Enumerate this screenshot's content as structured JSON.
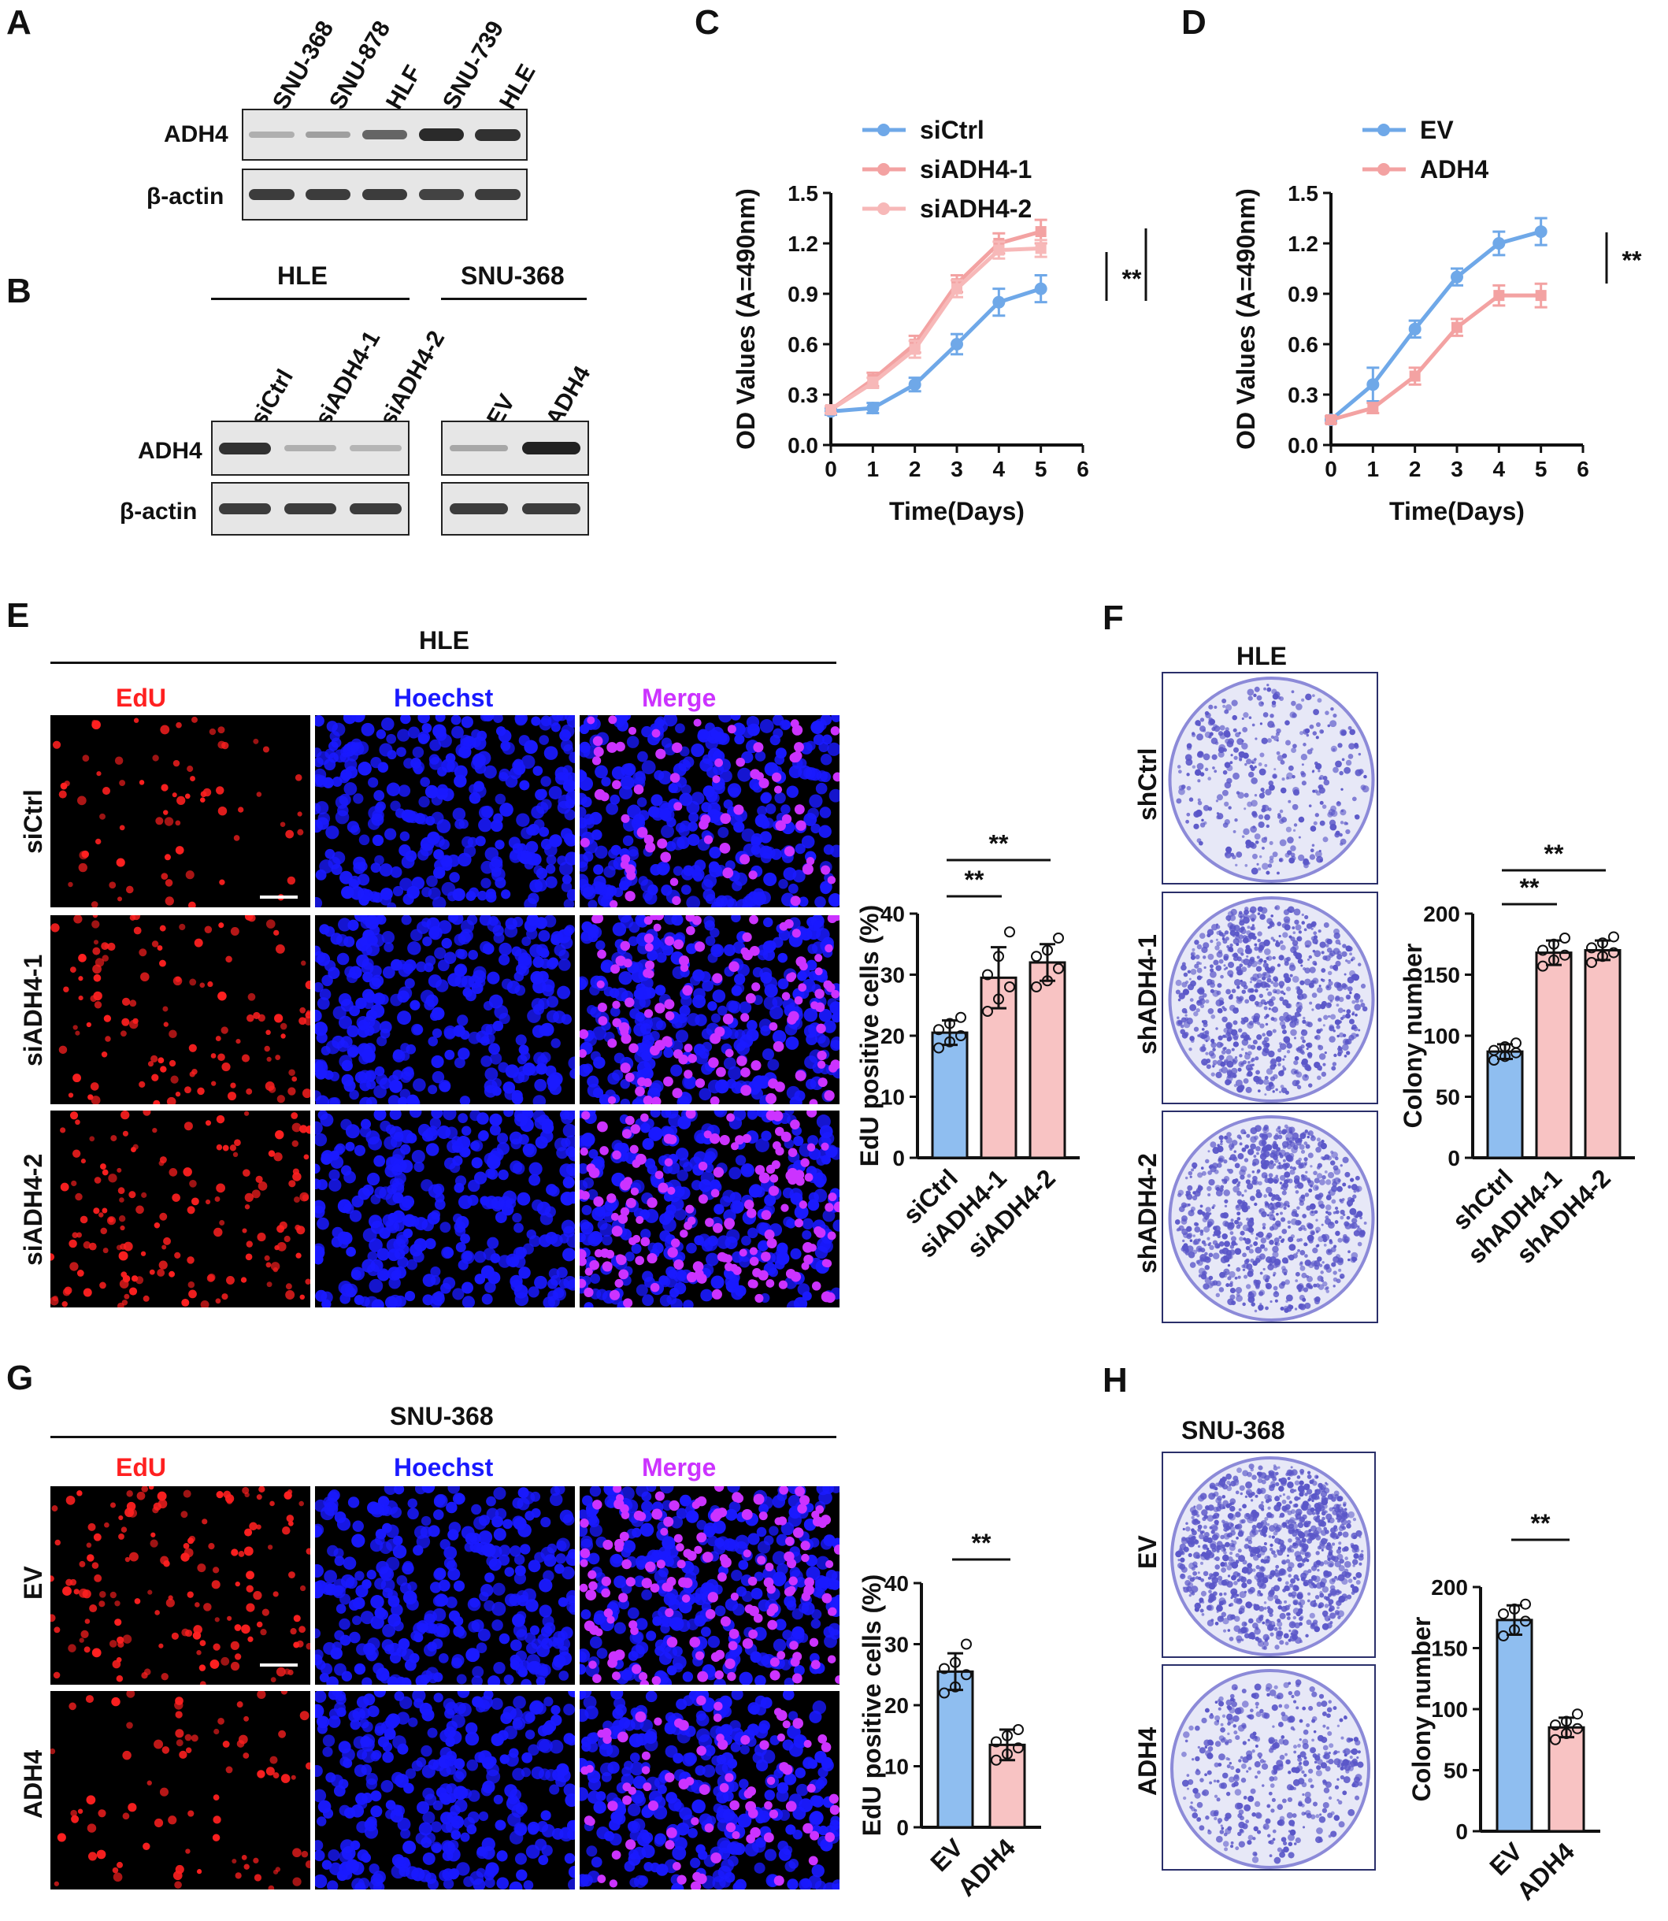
{
  "panels": {
    "A": {
      "letter": "A",
      "lanes": [
        "SNU-368",
        "SNU-878",
        "HLF",
        "SNU-739",
        "HLE"
      ],
      "rows": [
        "ADH4",
        "β-actin"
      ],
      "adh4_intensity": [
        0.15,
        0.25,
        0.6,
        0.95,
        0.9
      ]
    },
    "B": {
      "letter": "B",
      "group1": "HLE",
      "group2": "SNU-368",
      "lanes1": [
        "siCtrl",
        "siADH4-1",
        "siADH4-2"
      ],
      "lanes2": [
        "EV",
        "ADH4"
      ],
      "rows": [
        "ADH4",
        "β-actin"
      ]
    },
    "C": {
      "letter": "C"
    },
    "D": {
      "letter": "D"
    },
    "E": {
      "letter": "E",
      "cell_line": "HLE",
      "channels": [
        "EdU",
        "Hoechst",
        "Merge"
      ],
      "rows": [
        "siCtrl",
        "siADH4-1",
        "siADH4-2"
      ]
    },
    "F": {
      "letter": "F",
      "cell_line": "HLE",
      "rows": [
        "shCtrl",
        "shADH4-1",
        "shADH4-2"
      ]
    },
    "G": {
      "letter": "G",
      "cell_line": "SNU-368",
      "channels": [
        "EdU",
        "Hoechst",
        "Merge"
      ],
      "rows": [
        "EV",
        "ADH4"
      ]
    },
    "H": {
      "letter": "H",
      "cell_line": "SNU-368",
      "rows": [
        "EV",
        "ADH4"
      ]
    }
  },
  "colors": {
    "blue": "#6fa8e8",
    "pink": "#f3a2a2",
    "bar_blue": "#8fbef0",
    "bar_pink": "#f8c3c3",
    "edu": "#ff2020",
    "hoechst": "#1a1aff",
    "merge": "#cc33ff",
    "plate": "#5a56c8"
  },
  "chart_data": [
    {
      "id": "C",
      "type": "line",
      "xlabel": "Time(Days)",
      "ylabel": "OD Values (A=490nm)",
      "xlim": [
        0,
        6
      ],
      "ylim": [
        0,
        1.5
      ],
      "xticks": [
        "0",
        "1",
        "2",
        "3",
        "4",
        "5",
        "6"
      ],
      "yticks": [
        "0.0",
        "0.3",
        "0.6",
        "0.9",
        "1.2",
        "1.5"
      ],
      "x": [
        0,
        1,
        2,
        3,
        4,
        5
      ],
      "series": [
        {
          "name": "siCtrl",
          "color": "#6fa8e8",
          "values": [
            0.2,
            0.22,
            0.36,
            0.6,
            0.85,
            0.93
          ],
          "err": [
            0.02,
            0.03,
            0.04,
            0.06,
            0.08,
            0.08
          ]
        },
        {
          "name": "siADH4-1",
          "color": "#f3a2a2",
          "values": [
            0.21,
            0.39,
            0.6,
            0.96,
            1.2,
            1.27
          ],
          "err": [
            0.02,
            0.04,
            0.05,
            0.05,
            0.06,
            0.07
          ]
        },
        {
          "name": "siADH4-2",
          "color": "#f7b8b8",
          "values": [
            0.21,
            0.37,
            0.57,
            0.93,
            1.16,
            1.17
          ],
          "err": [
            0.02,
            0.03,
            0.05,
            0.05,
            0.05,
            0.05
          ]
        }
      ],
      "significance": [
        "**",
        "**"
      ]
    },
    {
      "id": "D",
      "type": "line",
      "xlabel": "Time(Days)",
      "ylabel": "OD Values (A=490nm)",
      "xlim": [
        0,
        6
      ],
      "ylim": [
        0,
        1.5
      ],
      "xticks": [
        "0",
        "1",
        "2",
        "3",
        "4",
        "5",
        "6"
      ],
      "yticks": [
        "0.0",
        "0.3",
        "0.6",
        "0.9",
        "1.2",
        "1.5"
      ],
      "x": [
        0,
        1,
        2,
        3,
        4,
        5
      ],
      "series": [
        {
          "name": "EV",
          "color": "#6fa8e8",
          "values": [
            0.15,
            0.36,
            0.69,
            1.0,
            1.2,
            1.27
          ],
          "err": [
            0.02,
            0.1,
            0.05,
            0.05,
            0.07,
            0.08
          ]
        },
        {
          "name": "ADH4",
          "color": "#f3a2a2",
          "values": [
            0.15,
            0.22,
            0.41,
            0.7,
            0.89,
            0.89
          ],
          "err": [
            0.02,
            0.03,
            0.05,
            0.05,
            0.06,
            0.07
          ]
        }
      ],
      "significance": [
        "**"
      ]
    },
    {
      "id": "E",
      "type": "bar",
      "ylabel": "EdU positive cells (%)",
      "ylim": [
        0,
        40
      ],
      "yticks": [
        "0",
        "10",
        "20",
        "30",
        "40"
      ],
      "categories": [
        "siCtrl",
        "siADH4-1",
        "siADH4-2"
      ],
      "values": [
        20.5,
        29.5,
        32
      ],
      "err": [
        2,
        5,
        3
      ],
      "points": [
        [
          18,
          19,
          20,
          21,
          22,
          23
        ],
        [
          24,
          26,
          28,
          30,
          33,
          37
        ],
        [
          28,
          29,
          31,
          33,
          34,
          36
        ]
      ],
      "colors": [
        "#8fbef0",
        "#f8c3c3",
        "#f8c3c3"
      ],
      "significance": [
        "**",
        "**"
      ]
    },
    {
      "id": "F",
      "type": "bar",
      "ylabel": "Colony number",
      "ylim": [
        0,
        200
      ],
      "yticks": [
        "0",
        "50",
        "100",
        "150",
        "200"
      ],
      "categories": [
        "shCtrl",
        "shADH4-1",
        "shADH4-2"
      ],
      "values": [
        87,
        168,
        170
      ],
      "err": [
        6,
        10,
        8
      ],
      "points": [
        [
          80,
          83,
          86,
          88,
          91,
          94
        ],
        [
          157,
          162,
          166,
          170,
          175,
          180
        ],
        [
          160,
          165,
          168,
          172,
          176,
          181
        ]
      ],
      "colors": [
        "#8fbef0",
        "#f8c3c3",
        "#f8c3c3"
      ],
      "significance": [
        "**",
        "**"
      ]
    },
    {
      "id": "G",
      "type": "bar",
      "ylabel": "EdU positive cells (%)",
      "ylim": [
        0,
        40
      ],
      "yticks": [
        "0",
        "10",
        "20",
        "30",
        "40"
      ],
      "categories": [
        "EV",
        "ADH4"
      ],
      "values": [
        25.5,
        13.5
      ],
      "err": [
        3,
        2.5
      ],
      "points": [
        [
          22,
          23,
          25,
          26,
          27,
          30
        ],
        [
          11,
          12,
          13,
          14,
          15,
          16
        ]
      ],
      "colors": [
        "#8fbef0",
        "#f8c3c3"
      ],
      "significance": [
        "**"
      ]
    },
    {
      "id": "H",
      "type": "bar",
      "ylabel": "Colony number",
      "ylim": [
        0,
        200
      ],
      "yticks": [
        "0",
        "50",
        "100",
        "150",
        "200"
      ],
      "categories": [
        "EV",
        "ADH4"
      ],
      "values": [
        173,
        85
      ],
      "err": [
        12,
        8
      ],
      "points": [
        [
          160,
          165,
          172,
          178,
          182,
          186
        ],
        [
          75,
          80,
          84,
          87,
          90,
          96
        ]
      ],
      "colors": [
        "#8fbef0",
        "#f8c3c3"
      ],
      "significance": [
        "**"
      ]
    }
  ]
}
